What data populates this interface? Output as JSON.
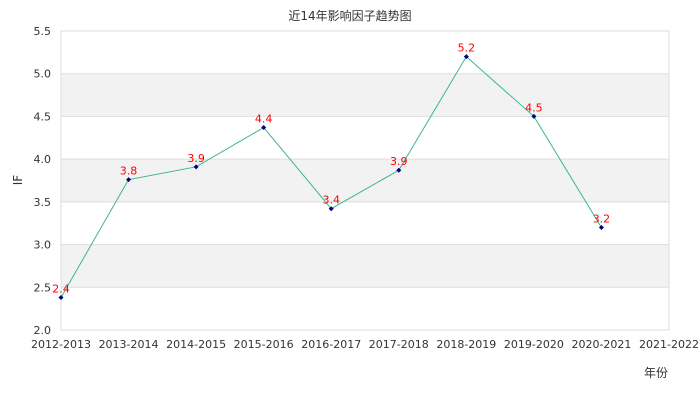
{
  "chart_data": {
    "type": "line",
    "title": "近14年影响因子趋势图",
    "xlabel": "年份",
    "ylabel": "IF",
    "categories": [
      "2012-2013",
      "2013-2014",
      "2014-2015",
      "2015-2016",
      "2016-2017",
      "2017-2018",
      "2018-2019",
      "2019-2020",
      "2020-2021",
      "2021-2022"
    ],
    "series": [
      {
        "name": "IF",
        "values": [
          2.38,
          3.76,
          3.91,
          4.37,
          3.42,
          3.87,
          5.2,
          4.5,
          3.2,
          null
        ],
        "labels": [
          "2.4",
          "3.8",
          "3.9",
          "4.4",
          "3.4",
          "3.9",
          "5.2",
          "4.5",
          "3.2",
          ""
        ]
      }
    ],
    "ylim": [
      2.0,
      5.5
    ],
    "yticks": [
      "2.0",
      "2.5",
      "3.0",
      "3.5",
      "4.0",
      "4.5",
      "5.0",
      "5.5"
    ],
    "grid": true,
    "legend": "none",
    "colors": {
      "line": "#3cb692",
      "marker": "#000080",
      "data_label": "#ff0000",
      "band": "#f2f2f2",
      "grid": "#dddddd"
    }
  }
}
